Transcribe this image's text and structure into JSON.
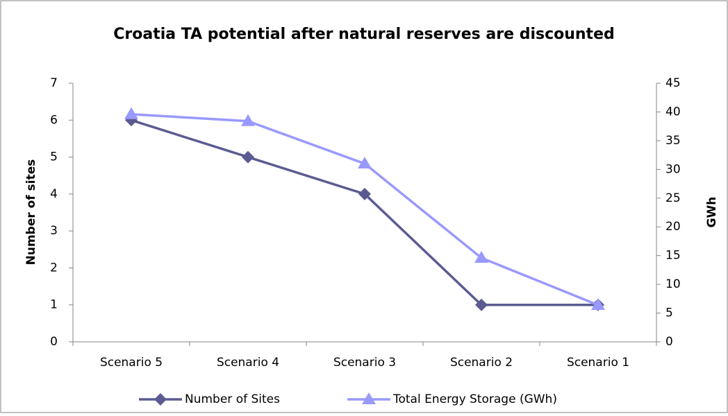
{
  "chart_data": {
    "type": "line",
    "title": "Croatia TA potential after natural reserves are discounted",
    "ylabel": "Number of sites",
    "y2label": "GWh",
    "categories": [
      "Scenario 5",
      "Scenario 4",
      "Scenario 3",
      "Scenario 2",
      "Scenario 1"
    ],
    "series": [
      {
        "name": "Number of Sites",
        "color": "#5b5b92",
        "marker": "diamond",
        "values": [
          6,
          5,
          4,
          1,
          1
        ]
      },
      {
        "name": "Total Energy Storage (GWh)",
        "color": "#9999ff",
        "marker": "triangle",
        "axis": "y2",
        "values": [
          39.6,
          38.4,
          31.0,
          14.6,
          6.4
        ]
      }
    ],
    "ylim": [
      0,
      7
    ],
    "yticks": [
      0,
      1,
      2,
      3,
      4,
      5,
      6,
      7
    ],
    "y2lim": [
      0,
      45
    ],
    "y2ticks": [
      0,
      5,
      10,
      15,
      20,
      25,
      30,
      35,
      40,
      45
    ],
    "grid": false,
    "legend": "bottom"
  }
}
